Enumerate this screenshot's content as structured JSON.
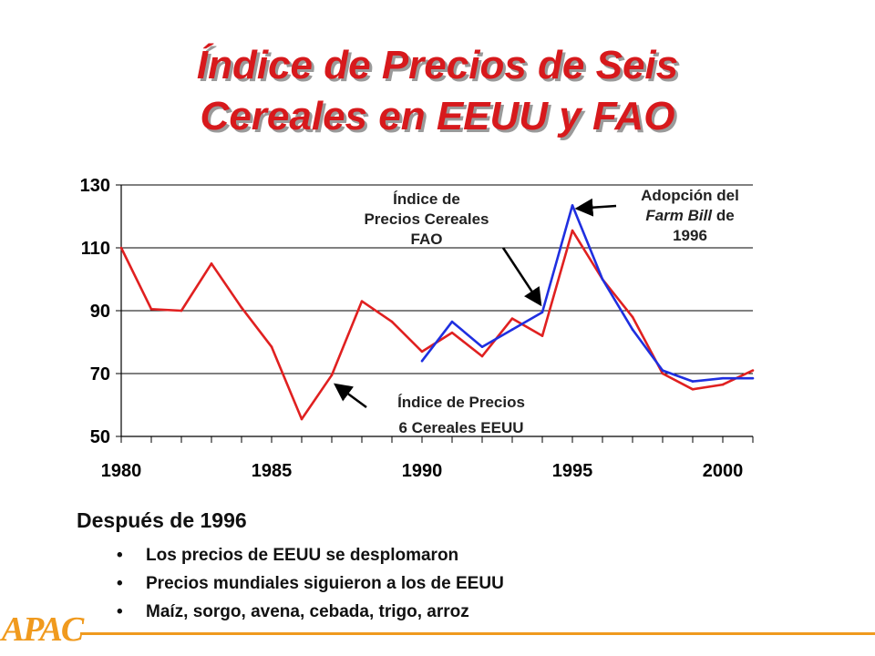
{
  "title_lines": [
    "Índice de Precios de Seis",
    "Cereales en EEUU y FAO"
  ],
  "chart_data": {
    "type": "line",
    "xlim": [
      1980,
      2001
    ],
    "ylim": [
      50,
      130
    ],
    "x_ticks": [
      "1980",
      "1985",
      "1990",
      "1995",
      "2000"
    ],
    "y_ticks": [
      "130",
      "110",
      "90",
      "70",
      "50"
    ],
    "grid": "horizontal",
    "series": [
      {
        "name": "Índice de Precios 6 Cereales EEUU",
        "color": "#e02020",
        "x": [
          1980,
          1981,
          1982,
          1983,
          1984,
          1985,
          1986,
          1987,
          1988,
          1989,
          1990,
          1991,
          1992,
          1993,
          1994,
          1995,
          1996,
          1997,
          1998,
          1999,
          2000,
          2001
        ],
        "y": [
          110,
          90.5,
          90,
          105,
          91,
          78.5,
          55.5,
          69.5,
          93,
          86.5,
          77,
          83,
          75.5,
          87.5,
          82,
          115.5,
          100,
          88,
          70,
          65,
          66.5,
          71
        ]
      },
      {
        "name": "Índice de Precios Cereales FAO",
        "color": "#1f2fe0",
        "x": [
          1990,
          1991,
          1992,
          1993,
          1994,
          1995,
          1996,
          1997,
          1998,
          1999,
          2000,
          2001
        ],
        "y": [
          74,
          86.5,
          78.5,
          84,
          89.5,
          123.5,
          100,
          84,
          71,
          67.5,
          68.5,
          68.5
        ]
      }
    ],
    "annotations": {
      "fao": [
        "Índice de",
        "Precios Cereales",
        "FAO"
      ],
      "us": [
        "Índice de Precios",
        "6 Cereales EEUU"
      ],
      "farm_bill": {
        "line1_a": "Adopción del",
        "line2_italic": "Farm Bill",
        "line2_b": " de",
        "line3": "1996"
      }
    }
  },
  "bottom": {
    "heading": "Después de 1996",
    "bullets": [
      "Los precios de EEUU se desplomaron",
      "Precios mundiales siguieron a los de EEUU",
      "Maíz, sorgo, avena, cebada, trigo, arroz"
    ],
    "bullet_glyph": "•"
  },
  "logo": "APAC",
  "accent_color": "#f09a1e"
}
